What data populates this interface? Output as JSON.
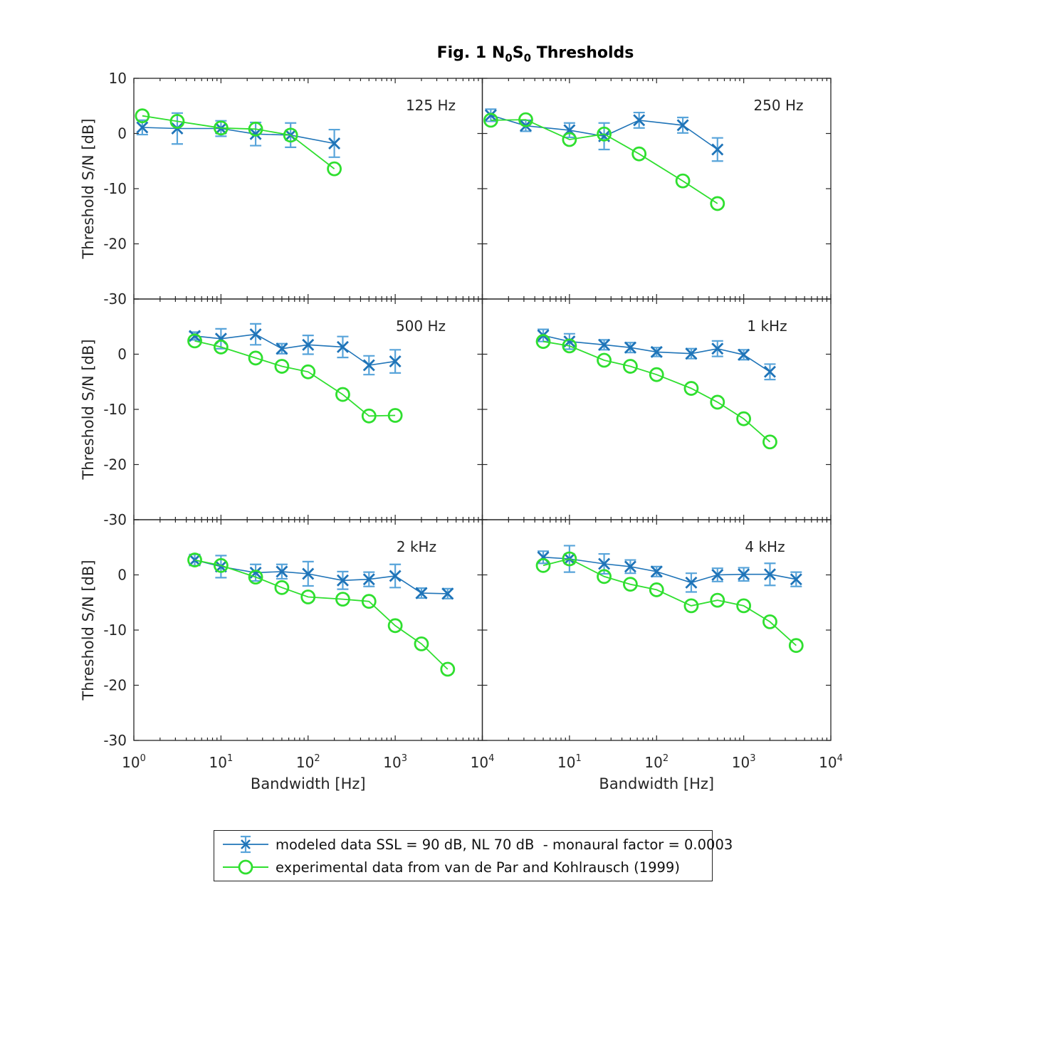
{
  "figure": {
    "title": {
      "seg1": "Fig. 1 N",
      "sub1": "0",
      "seg2": "S",
      "sub2": "0",
      "seg3": " Thresholds"
    },
    "title_plain": "Fig. 1 N0S0 Thresholds"
  },
  "axes": {
    "xlabel": "Bandwidth [Hz]",
    "ylabel": "Threshold S/N [dB]",
    "xscale": "log",
    "xlim": [
      1,
      10000
    ],
    "ylim": [
      -30,
      10
    ],
    "xtick_base": "10",
    "xtick_exponents": [
      0,
      1,
      2,
      3,
      4
    ],
    "ytick_values": [
      10,
      0,
      -10,
      -20,
      -30
    ]
  },
  "colors": {
    "modeled_line": "#1f74b8",
    "modeled_error": "#58a4da",
    "experimental": "#2fdf2f",
    "axis": "#262626",
    "text": "#262626"
  },
  "legend": {
    "modeled_label": "modeled data SSL = 90 dB, NL 70 dB  - monaural factor = 0.0003",
    "experimental_label": "experimental data from van de Par and Kohlrausch (1999)"
  },
  "chart_data": [
    {
      "type": "line",
      "panel_label": "125 Hz",
      "x": [
        1.25,
        3.15,
        10,
        25,
        63,
        200
      ],
      "series": [
        {
          "name": "modeled",
          "y": [
            1.1,
            0.9,
            0.9,
            -0.1,
            -0.3,
            -1.8
          ],
          "yerr": [
            1.3,
            2.8,
            1.4,
            2.1,
            2.2,
            2.5
          ]
        },
        {
          "name": "experimental",
          "y": [
            3.2,
            2.2,
            1.0,
            0.8,
            -0.3,
            -6.4
          ]
        }
      ]
    },
    {
      "type": "line",
      "panel_label": "250 Hz",
      "x": [
        1.25,
        3.15,
        10,
        25,
        63,
        200,
        500
      ],
      "series": [
        {
          "name": "modeled",
          "y": [
            3.3,
            1.4,
            0.6,
            -0.5,
            2.4,
            1.5,
            -2.9
          ],
          "yerr": [
            1.1,
            1.0,
            1.3,
            2.4,
            1.4,
            1.4,
            2.1
          ]
        },
        {
          "name": "experimental",
          "y": [
            2.4,
            2.5,
            -1.1,
            -0.1,
            -3.7,
            -8.6,
            -12.7
          ]
        }
      ]
    },
    {
      "type": "line",
      "panel_label": "500 Hz",
      "x": [
        5,
        10,
        25,
        50,
        100,
        250,
        500,
        1000
      ],
      "series": [
        {
          "name": "modeled",
          "y": [
            3.3,
            2.8,
            3.6,
            1.0,
            1.7,
            1.3,
            -2.0,
            -1.3
          ],
          "yerr": [
            0.7,
            1.8,
            1.9,
            0.9,
            1.7,
            1.9,
            1.7,
            2.1
          ]
        },
        {
          "name": "experimental",
          "y": [
            2.4,
            1.3,
            -0.7,
            -2.2,
            -3.2,
            -7.3,
            -11.2,
            -11.1
          ]
        }
      ]
    },
    {
      "type": "line",
      "panel_label": "1 kHz",
      "x": [
        5,
        10,
        25,
        50,
        100,
        250,
        500,
        1000,
        2000
      ],
      "series": [
        {
          "name": "modeled",
          "y": [
            3.4,
            2.3,
            1.7,
            1.2,
            0.4,
            0.1,
            1.0,
            -0.1,
            -3.2
          ],
          "yerr": [
            1.1,
            1.4,
            0.9,
            0.9,
            0.8,
            0.9,
            1.4,
            0.9,
            1.4
          ]
        },
        {
          "name": "experimental",
          "y": [
            2.3,
            1.5,
            -1.1,
            -2.2,
            -3.7,
            -6.2,
            -8.7,
            -11.7,
            -15.9
          ]
        }
      ]
    },
    {
      "type": "line",
      "panel_label": "2 kHz",
      "x": [
        5,
        10,
        25,
        50,
        100,
        250,
        500,
        1000,
        2000,
        4000
      ],
      "series": [
        {
          "name": "modeled",
          "y": [
            2.7,
            1.5,
            0.4,
            0.6,
            0.2,
            -1.0,
            -0.8,
            -0.2,
            -3.3,
            -3.4
          ],
          "yerr": [
            1.0,
            2.0,
            1.5,
            1.3,
            2.2,
            1.6,
            1.3,
            2.1,
            0.9,
            0.9
          ]
        },
        {
          "name": "experimental",
          "y": [
            2.7,
            1.7,
            -0.4,
            -2.3,
            -4.0,
            -4.4,
            -4.8,
            -9.2,
            -12.5,
            -17.1
          ]
        }
      ]
    },
    {
      "type": "line",
      "panel_label": "4 kHz",
      "x": [
        5,
        10,
        25,
        50,
        100,
        250,
        500,
        1000,
        2000,
        4000
      ],
      "series": [
        {
          "name": "modeled",
          "y": [
            3.2,
            2.9,
            2.0,
            1.5,
            0.6,
            -1.4,
            0.0,
            0.1,
            0.1,
            -0.8
          ],
          "yerr": [
            1.1,
            2.4,
            1.8,
            1.2,
            0.9,
            1.7,
            1.2,
            1.2,
            2.0,
            1.3
          ]
        },
        {
          "name": "experimental",
          "y": [
            1.7,
            2.9,
            -0.3,
            -1.7,
            -2.7,
            -5.6,
            -4.6,
            -5.6,
            -8.5,
            -12.8
          ]
        }
      ]
    }
  ]
}
